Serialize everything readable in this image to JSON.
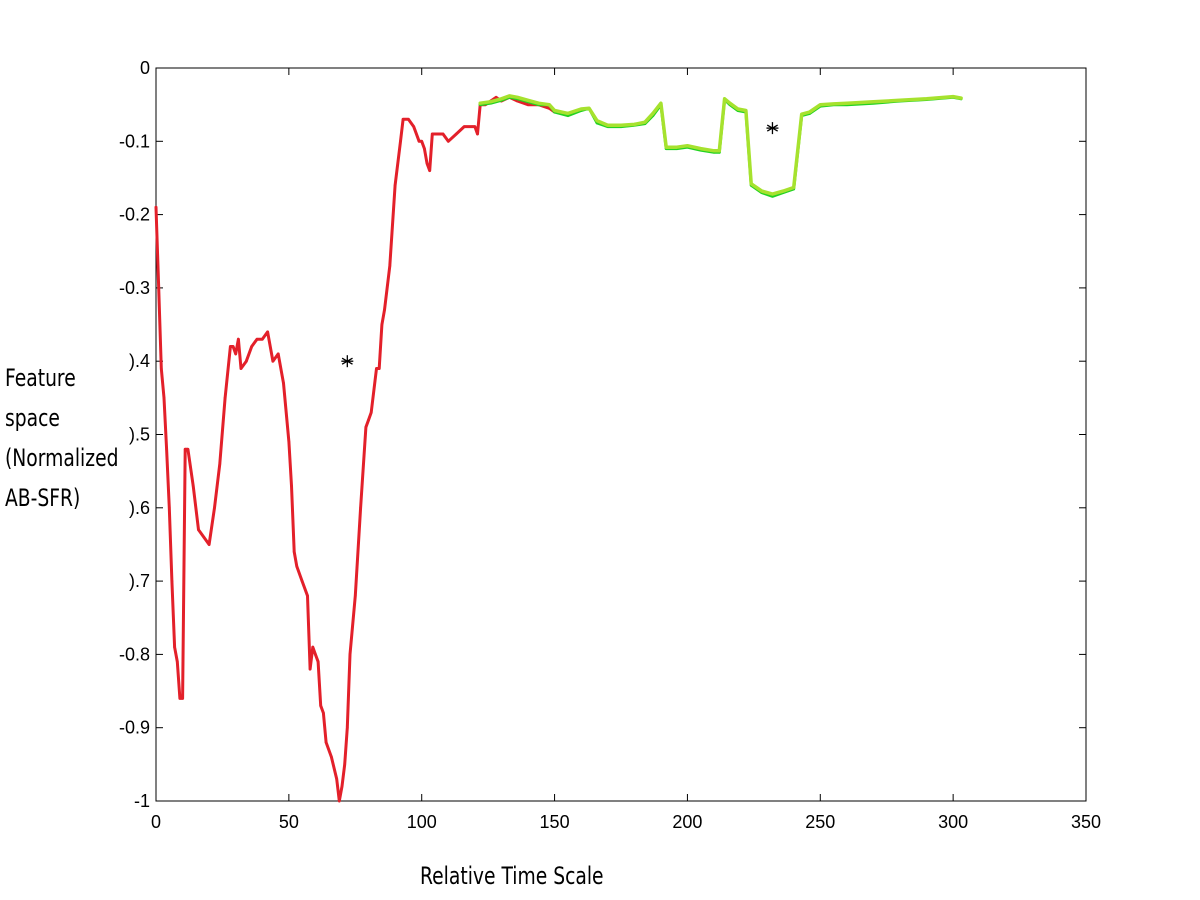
{
  "chart_data": {
    "type": "line",
    "title": "",
    "xlabel": "Relative Time Scale",
    "ylabel_lines": [
      "Feature",
      "space",
      "(Normalized",
      "AB-SFR)"
    ],
    "xlim": [
      0,
      350
    ],
    "ylim": [
      -1,
      0
    ],
    "x_ticks": [
      0,
      50,
      100,
      150,
      200,
      250,
      300,
      350
    ],
    "y_ticks": [
      0,
      -0.1,
      -0.2,
      -0.3,
      -0.4,
      -0.5,
      -0.6,
      -0.7,
      -0.8,
      -0.9,
      -1
    ],
    "y_tick_labels": [
      "0",
      "-0.1",
      "-0.2",
      "-0.3",
      ").4",
      ").5",
      ").6",
      ").7",
      "-0.8",
      "-0.9",
      "-1"
    ],
    "grid": false,
    "colors": {
      "red": "#e3202a",
      "green": "#22d222",
      "yellowgreen": "#a6e22e",
      "marker": "#000000"
    },
    "series": [
      {
        "color": "red",
        "x": [
          0,
          1,
          2,
          3,
          4,
          5,
          6,
          7,
          8,
          9,
          10,
          11,
          12,
          14,
          16,
          18,
          20,
          22,
          24,
          26,
          28,
          29,
          30,
          31,
          32,
          34,
          36,
          38,
          40,
          42,
          44,
          46,
          48,
          50,
          51,
          52,
          53,
          55,
          57,
          58,
          59,
          60,
          61,
          62,
          63,
          64,
          66,
          68,
          69,
          70,
          71,
          72,
          73,
          75,
          77,
          79,
          80,
          81,
          83,
          84,
          85,
          86,
          88,
          90,
          92,
          93,
          95,
          97,
          99,
          100,
          101,
          102,
          103,
          104,
          106,
          108,
          110,
          113,
          116,
          119,
          120,
          121,
          122,
          124,
          126,
          128,
          130,
          133,
          136,
          140,
          144,
          148,
          150
        ],
        "y": [
          -0.19,
          -0.3,
          -0.41,
          -0.45,
          -0.52,
          -0.6,
          -0.7,
          -0.79,
          -0.81,
          -0.86,
          -0.86,
          -0.52,
          -0.52,
          -0.57,
          -0.63,
          -0.64,
          -0.65,
          -0.6,
          -0.54,
          -0.45,
          -0.38,
          -0.38,
          -0.39,
          -0.37,
          -0.41,
          -0.4,
          -0.38,
          -0.37,
          -0.37,
          -0.36,
          -0.4,
          -0.39,
          -0.43,
          -0.51,
          -0.57,
          -0.66,
          -0.68,
          -0.7,
          -0.72,
          -0.82,
          -0.79,
          -0.8,
          -0.81,
          -0.87,
          -0.88,
          -0.92,
          -0.94,
          -0.97,
          -1.0,
          -0.98,
          -0.95,
          -0.9,
          -0.8,
          -0.72,
          -0.6,
          -0.49,
          -0.48,
          -0.47,
          -0.41,
          -0.41,
          -0.35,
          -0.33,
          -0.27,
          -0.16,
          -0.1,
          -0.07,
          -0.07,
          -0.08,
          -0.1,
          -0.1,
          -0.11,
          -0.13,
          -0.14,
          -0.09,
          -0.09,
          -0.09,
          -0.1,
          -0.09,
          -0.08,
          -0.08,
          -0.08,
          -0.09,
          -0.05,
          -0.05,
          -0.045,
          -0.04,
          -0.045,
          -0.04,
          -0.045,
          -0.05,
          -0.05,
          -0.055,
          -0.06
        ]
      },
      {
        "color": "green",
        "x": [
          122,
          126,
          130,
          133,
          136,
          140,
          144,
          148,
          150,
          155,
          160,
          163,
          166,
          170,
          175,
          180,
          184,
          187,
          190,
          192,
          196,
          200,
          205,
          210,
          212,
          214,
          216,
          219,
          222,
          224,
          228,
          232,
          236,
          240,
          243,
          246,
          250,
          255,
          260,
          270,
          280,
          290,
          300,
          303
        ],
        "y": [
          -0.05,
          -0.048,
          -0.044,
          -0.04,
          -0.042,
          -0.046,
          -0.05,
          -0.05,
          -0.06,
          -0.065,
          -0.058,
          -0.055,
          -0.075,
          -0.08,
          -0.08,
          -0.078,
          -0.076,
          -0.065,
          -0.05,
          -0.11,
          -0.11,
          -0.108,
          -0.112,
          -0.115,
          -0.115,
          -0.043,
          -0.05,
          -0.058,
          -0.06,
          -0.16,
          -0.17,
          -0.175,
          -0.17,
          -0.165,
          -0.065,
          -0.062,
          -0.052,
          -0.05,
          -0.05,
          -0.048,
          -0.045,
          -0.043,
          -0.04,
          -0.042
        ]
      },
      {
        "color": "yellowgreen",
        "x": [
          122,
          126,
          130,
          133,
          136,
          140,
          144,
          148,
          150,
          155,
          160,
          163,
          166,
          170,
          175,
          180,
          184,
          187,
          190,
          192,
          196,
          200,
          205,
          210,
          212,
          214,
          216,
          219,
          222,
          224,
          228,
          232,
          236,
          240,
          243,
          246,
          250,
          255,
          260,
          270,
          280,
          290,
          300,
          303
        ],
        "y": [
          -0.048,
          -0.046,
          -0.042,
          -0.038,
          -0.04,
          -0.044,
          -0.048,
          -0.05,
          -0.058,
          -0.062,
          -0.056,
          -0.055,
          -0.072,
          -0.078,
          -0.078,
          -0.077,
          -0.074,
          -0.062,
          -0.048,
          -0.108,
          -0.108,
          -0.106,
          -0.11,
          -0.113,
          -0.113,
          -0.042,
          -0.048,
          -0.056,
          -0.058,
          -0.158,
          -0.168,
          -0.172,
          -0.168,
          -0.163,
          -0.063,
          -0.06,
          -0.05,
          -0.049,
          -0.048,
          -0.046,
          -0.044,
          -0.042,
          -0.039,
          -0.041
        ]
      }
    ],
    "markers": [
      {
        "x": 72,
        "y": -0.4,
        "symbol": "*"
      },
      {
        "x": 232,
        "y": -0.082,
        "symbol": "*"
      }
    ]
  }
}
